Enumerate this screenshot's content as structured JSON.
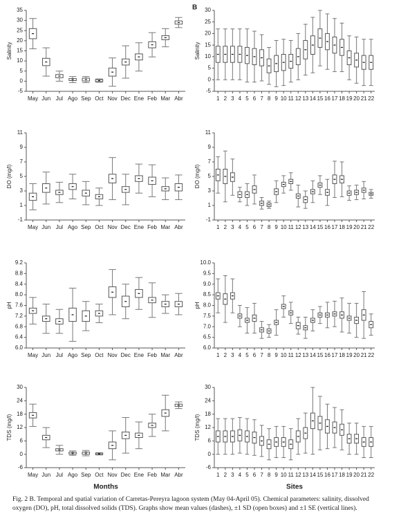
{
  "chart_data": [
    {
      "type": "box",
      "ylabel": "Salinity",
      "categories": [
        "May",
        "Jun",
        "Jul",
        "Ago",
        "Sep",
        "Oct",
        "Nov",
        "Dec",
        "Ene",
        "Feb",
        "Mar",
        "Abr"
      ],
      "mean": [
        23.5,
        9.5,
        2.5,
        0.8,
        0.8,
        0.3,
        4.5,
        9.5,
        12,
        18,
        21.5,
        29
      ],
      "sd": [
        2.5,
        1.8,
        0.8,
        0.5,
        0.7,
        0.5,
        2,
        1.5,
        1.5,
        1.5,
        1,
        0.8
      ],
      "se": [
        7.5,
        7,
        2.5,
        1.5,
        1.5,
        0.8,
        7,
        8,
        7,
        6,
        4.5,
        2.5
      ],
      "ylim": [
        -5,
        35
      ],
      "yticks": [
        -5,
        0,
        5,
        10,
        15,
        20,
        25,
        30,
        35
      ]
    },
    {
      "type": "box",
      "panel_label": "B",
      "ylabel": "Salinity",
      "categories": [
        "1",
        "2",
        "3",
        "4",
        "5",
        "6",
        "7",
        "8",
        "9",
        "10",
        "11",
        "12",
        "13",
        "14",
        "15",
        "16",
        "17",
        "18",
        "19",
        "20",
        "21",
        "22"
      ],
      "mean": [
        11,
        11,
        11,
        11,
        10.5,
        10,
        9.5,
        6,
        7,
        7.5,
        8,
        10,
        13,
        15,
        18,
        16.5,
        15,
        14,
        9.5,
        8.5,
        7.5,
        7.5
      ],
      "sd": [
        3.5,
        3.5,
        3.5,
        3.5,
        3.5,
        3.5,
        3.5,
        3,
        3.5,
        3.5,
        3,
        3.5,
        4,
        4,
        4,
        3.5,
        3.5,
        3.5,
        3,
        3,
        3,
        3
      ],
      "se": [
        11,
        11,
        11,
        11,
        11.5,
        11,
        10,
        8,
        10,
        10,
        9,
        10,
        11,
        12,
        12,
        12,
        11.5,
        10.5,
        9.5,
        10,
        10,
        10
      ],
      "ylim": [
        -5,
        30
      ],
      "yticks": [
        -5,
        0,
        5,
        10,
        15,
        20,
        25,
        30
      ]
    },
    {
      "type": "box",
      "ylabel": "DO (mg/l)",
      "categories": [
        "May",
        "Jun",
        "Jul",
        "Ago",
        "Sep",
        "Oct",
        "Nov",
        "Dec",
        "Ene",
        "Feb",
        "Mar",
        "Abr"
      ],
      "mean": [
        2.2,
        3.4,
        2.8,
        3.6,
        2.7,
        2.2,
        4.7,
        3.2,
        4.7,
        4.4,
        3.3,
        3.5
      ],
      "sd": [
        0.5,
        0.6,
        0.3,
        0.4,
        0.4,
        0.3,
        0.6,
        0.4,
        0.4,
        0.5,
        0.3,
        0.5
      ],
      "se": [
        1.8,
        2.2,
        1.4,
        1.7,
        1.6,
        1.2,
        2.9,
        2.1,
        2,
        2.2,
        1.5,
        1.7
      ],
      "ylim": [
        -1,
        11
      ],
      "yticks": [
        -1,
        1,
        3,
        5,
        7,
        9,
        11
      ]
    },
    {
      "type": "box",
      "ylabel": "DO (mg/l)",
      "categories": [
        "1",
        "2",
        "3",
        "4",
        "5",
        "6",
        "7",
        "8",
        "9",
        "10",
        "11",
        "12",
        "13",
        "14",
        "15",
        "16",
        "17",
        "18",
        "19",
        "20",
        "21",
        "22"
      ],
      "mean": [
        5.2,
        5,
        4.9,
        2.5,
        2.5,
        3.2,
        1.3,
        1.1,
        2.9,
        3.9,
        4.3,
        2.3,
        1.8,
        2.9,
        3.8,
        2.8,
        4.6,
        4.6,
        2.7,
        2.8,
        3.1,
        2.6
      ],
      "sd": [
        0.8,
        1,
        0.6,
        0.4,
        0.4,
        0.5,
        0.3,
        0.25,
        0.4,
        0.3,
        0.3,
        0.3,
        0.4,
        0.3,
        0.3,
        0.4,
        0.6,
        0.5,
        0.3,
        0.3,
        0.3,
        0.2
      ],
      "se": [
        2.5,
        3.5,
        2.5,
        1,
        1.5,
        2,
        0.8,
        0.5,
        1.5,
        1.2,
        1.2,
        1.5,
        1.2,
        1.5,
        1.3,
        1.8,
        2.5,
        2.4,
        1,
        1,
        1.2,
        0.6
      ],
      "ylim": [
        -1,
        11
      ],
      "yticks": [
        -1,
        1,
        3,
        5,
        7,
        9,
        11
      ]
    },
    {
      "type": "box",
      "ylabel": "pH",
      "categories": [
        "May",
        "Jun",
        "Jul",
        "Ago",
        "Sep",
        "Oct",
        "Nov",
        "Dec",
        "Ene",
        "Feb",
        "Mar",
        "Abr"
      ],
      "mean": [
        7.4,
        7.1,
        7.0,
        7.25,
        7.2,
        7.3,
        8.1,
        7.75,
        8.05,
        7.8,
        7.65,
        7.65
      ],
      "sd": [
        0.1,
        0.1,
        0.1,
        0.25,
        0.2,
        0.1,
        0.2,
        0.2,
        0.15,
        0.1,
        0.1,
        0.1
      ],
      "se": [
        0.5,
        0.55,
        0.45,
        1.0,
        0.55,
        0.35,
        0.85,
        0.65,
        0.6,
        0.65,
        0.35,
        0.4
      ],
      "ylim": [
        6.0,
        9.2
      ],
      "yticks": [
        {
          "value": 6.0,
          "label": "6.0"
        },
        6.4,
        6.8,
        7.2,
        7.6,
        {
          "value": 8.0,
          "label": "8.0"
        },
        8.4,
        8.8,
        9.2
      ]
    },
    {
      "type": "box",
      "ylabel": "pH",
      "categories": [
        "1",
        "2",
        "3",
        "4",
        "5",
        "6",
        "7",
        "8",
        "9",
        "10",
        "11",
        "12",
        "13",
        "14",
        "15",
        "16",
        "17",
        "18",
        "19",
        "20",
        "21",
        "22"
      ],
      "mean": [
        8.45,
        8.3,
        8.45,
        7.5,
        7.3,
        7.4,
        6.85,
        6.8,
        7.2,
        7.95,
        7.65,
        7.05,
        6.95,
        7.3,
        7.55,
        7.55,
        7.6,
        7.55,
        7.4,
        7.3,
        7.55,
        7.1
      ],
      "sd": [
        0.15,
        0.25,
        0.15,
        0.1,
        0.1,
        0.15,
        0.1,
        0.1,
        0.1,
        0.1,
        0.1,
        0.15,
        0.1,
        0.1,
        0.1,
        0.1,
        0.1,
        0.15,
        0.1,
        0.15,
        0.25,
        0.15
      ],
      "se": [
        0.8,
        1.1,
        0.8,
        0.5,
        0.6,
        0.7,
        0.4,
        0.3,
        0.6,
        0.5,
        0.5,
        0.4,
        0.5,
        0.5,
        0.4,
        0.6,
        0.6,
        0.8,
        0.7,
        0.8,
        1.1,
        0.5
      ],
      "ylim": [
        6.0,
        10.0
      ],
      "yticks": [
        {
          "value": 6.0,
          "label": "6.0"
        },
        6.5,
        {
          "value": 7.0,
          "label": "7.0"
        },
        7.5,
        {
          "value": 8.0,
          "label": "8.0"
        },
        8.5,
        {
          "value": 9.0,
          "label": "9.0"
        },
        9.5,
        {
          "value": 10.0,
          "label": "10.0"
        }
      ]
    },
    {
      "type": "box",
      "ylabel": "TDS (mg/l)",
      "xlabel": "Months",
      "categories": [
        "May",
        "Jun",
        "Jul",
        "Ago",
        "Sep",
        "Oct",
        "Nov",
        "Dec",
        "Ene",
        "Feb",
        "Mar",
        "Abr"
      ],
      "mean": [
        17.5,
        7.5,
        2,
        0.5,
        0.5,
        0.2,
        4,
        8.5,
        8.5,
        13,
        18.5,
        22
      ],
      "sd": [
        1.2,
        1,
        0.5,
        0.4,
        0.5,
        0.3,
        1.5,
        1.5,
        1,
        1,
        1.5,
        0.5
      ],
      "se": [
        5,
        4.5,
        2,
        1,
        1.2,
        0.5,
        6.5,
        8,
        6,
        5,
        8,
        1.5
      ],
      "ylim": [
        -6,
        30
      ],
      "yticks": [
        -6,
        0,
        6,
        12,
        18,
        24,
        30
      ]
    },
    {
      "type": "box",
      "ylabel": "TDS (mg/l)",
      "xlabel": "Sites",
      "categories": [
        "1",
        "2",
        "3",
        "4",
        "5",
        "6",
        "7",
        "8",
        "9",
        "10",
        "11",
        "12",
        "13",
        "14",
        "15",
        "16",
        "17",
        "18",
        "19",
        "20",
        "21",
        "22"
      ],
      "mean": [
        8,
        8,
        8,
        8.5,
        8,
        7.5,
        6,
        4.5,
        5.5,
        5.5,
        4.5,
        8,
        9.5,
        15,
        14,
        12.5,
        12,
        11,
        7,
        7,
        5.5,
        5.5
      ],
      "sd": [
        2.5,
        2.5,
        2.5,
        2.5,
        2.5,
        2.5,
        2,
        2,
        2,
        2,
        2,
        2.5,
        2.5,
        3.5,
        3,
        3,
        2.5,
        2.5,
        2,
        2,
        2,
        2
      ],
      "se": [
        8,
        8,
        8,
        8,
        8,
        8,
        7,
        7,
        7,
        7,
        7,
        8,
        9,
        15,
        12,
        10,
        9,
        9,
        7,
        7,
        7,
        7
      ],
      "ylim": [
        -6,
        30
      ],
      "yticks": [
        -6,
        0,
        6,
        12,
        18,
        24,
        30
      ]
    }
  ],
  "caption": "Fig. 2 B. Temporal and spatial variation of Carretas-Pereyra lagoon system (May 04-April 05). Chemical parameters: salinity, dissolved oxygen (DO), pH, total dissolved solids (TDS). Graphs show mean values (dashes), ±1 SD (open boxes) and ±1 SE (vertical lines)."
}
